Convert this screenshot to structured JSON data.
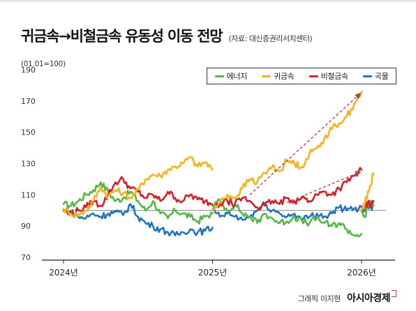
{
  "header": {
    "title": "귀금속→비철금속 유동성 이동 전망",
    "source": "(자료: 대신증권리서치센터)",
    "unit": "(01.01=100)"
  },
  "credit": {
    "author": "그래픽 이지현",
    "brand": "아시아경제"
  },
  "colors": {
    "energy": "#54b847",
    "precious_metals": "#f5b41c",
    "base_metals": "#d5202a",
    "grains": "#1f75bd",
    "arrow": "#b5404a",
    "baseline": "#9a9a9a"
  },
  "chart_data": {
    "type": "line",
    "title": "귀금속→비철금속 유동성 이동 전망",
    "ylabel": "(01.01=100)",
    "xlabel": "",
    "ylim": [
      70,
      190
    ],
    "yticks": [
      "190",
      "170",
      "150",
      "130",
      "110",
      "90",
      "70"
    ],
    "xticks": [
      {
        "label": "2024년",
        "x": 2024.0
      },
      {
        "label": "2025년",
        "x": 2025.0
      },
      {
        "label": "2026년",
        "x": 2026.0
      }
    ],
    "legend_position": "top-right",
    "grid": false,
    "reference_line": 100,
    "series": [
      {
        "name": "에너지",
        "color": "#54b847",
        "segments": [
          [
            [
              2024.0,
              104
            ],
            [
              2024.05,
              103
            ],
            [
              2024.1,
              106
            ],
            [
              2024.15,
              110
            ],
            [
              2024.2,
              113
            ],
            [
              2024.25,
              118
            ],
            [
              2024.3,
              112
            ],
            [
              2024.35,
              106
            ],
            [
              2024.4,
              108
            ],
            [
              2024.45,
              112
            ],
            [
              2024.5,
              106
            ],
            [
              2024.55,
              100
            ],
            [
              2024.6,
              106
            ],
            [
              2024.65,
              98
            ],
            [
              2024.7,
              95
            ],
            [
              2024.75,
              100
            ],
            [
              2024.8,
              98
            ],
            [
              2024.85,
              96
            ],
            [
              2024.9,
              93
            ],
            [
              2024.95,
              96
            ],
            [
              2025.0,
              98
            ]
          ],
          [
            [
              2025.0,
              103
            ],
            [
              2025.05,
              106
            ],
            [
              2025.1,
              100
            ],
            [
              2025.15,
              104
            ],
            [
              2025.2,
              98
            ],
            [
              2025.25,
              96
            ],
            [
              2025.3,
              92
            ],
            [
              2025.35,
              98
            ],
            [
              2025.4,
              95
            ],
            [
              2025.45,
              92
            ],
            [
              2025.5,
              93
            ],
            [
              2025.55,
              96
            ],
            [
              2025.6,
              93
            ],
            [
              2025.65,
              92
            ],
            [
              2025.7,
              95
            ],
            [
              2025.75,
              92
            ],
            [
              2025.8,
              90
            ],
            [
              2025.85,
              92
            ],
            [
              2025.9,
              88
            ],
            [
              2025.95,
              84
            ],
            [
              2026.0,
              85
            ]
          ],
          [
            [
              2026.0,
              100
            ],
            [
              2026.02,
              96
            ],
            [
              2026.04,
              102
            ],
            [
              2026.06,
              106
            ],
            [
              2026.08,
              103
            ]
          ]
        ]
      },
      {
        "name": "귀금속",
        "color": "#f5b41c",
        "segments": [
          [
            [
              2024.0,
              101
            ],
            [
              2024.05,
              98
            ],
            [
              2024.1,
              97
            ],
            [
              2024.15,
              100
            ],
            [
              2024.2,
              106
            ],
            [
              2024.25,
              115
            ],
            [
              2024.3,
              109
            ],
            [
              2024.35,
              113
            ],
            [
              2024.4,
              111
            ],
            [
              2024.45,
              108
            ],
            [
              2024.5,
              113
            ],
            [
              2024.55,
              120
            ],
            [
              2024.6,
              123
            ],
            [
              2024.65,
              122
            ],
            [
              2024.7,
              126
            ],
            [
              2024.75,
              128
            ],
            [
              2024.8,
              130
            ],
            [
              2024.85,
              134
            ],
            [
              2024.9,
              128
            ],
            [
              2024.95,
              131
            ],
            [
              2025.0,
              126
            ]
          ],
          [
            [
              2025.0,
              100
            ],
            [
              2025.05,
              105
            ],
            [
              2025.1,
              110
            ],
            [
              2025.15,
              108
            ],
            [
              2025.2,
              114
            ],
            [
              2025.25,
              120
            ],
            [
              2025.3,
              118
            ],
            [
              2025.35,
              124
            ],
            [
              2025.4,
              128
            ],
            [
              2025.45,
              125
            ],
            [
              2025.5,
              132
            ],
            [
              2025.55,
              130
            ],
            [
              2025.6,
              128
            ],
            [
              2025.65,
              136
            ],
            [
              2025.7,
              140
            ],
            [
              2025.75,
              146
            ],
            [
              2025.8,
              152
            ],
            [
              2025.85,
              156
            ],
            [
              2025.9,
              160
            ],
            [
              2025.95,
              168
            ],
            [
              2026.0,
              176
            ]
          ],
          [
            [
              2026.0,
              100
            ],
            [
              2026.02,
              104
            ],
            [
              2026.04,
              110
            ],
            [
              2026.06,
              116
            ],
            [
              2026.08,
              123
            ]
          ]
        ]
      },
      {
        "name": "비철금속",
        "color": "#d5202a",
        "segments": [
          [
            [
              2024.0,
              100
            ],
            [
              2024.05,
              98
            ],
            [
              2024.1,
              100
            ],
            [
              2024.15,
              102
            ],
            [
              2024.2,
              106
            ],
            [
              2024.25,
              103
            ],
            [
              2024.3,
              110
            ],
            [
              2024.35,
              118
            ],
            [
              2024.4,
              120
            ],
            [
              2024.45,
              114
            ],
            [
              2024.5,
              112
            ],
            [
              2024.55,
              108
            ],
            [
              2024.6,
              110
            ],
            [
              2024.65,
              106
            ],
            [
              2024.7,
              112
            ],
            [
              2024.75,
              108
            ],
            [
              2024.8,
              106
            ],
            [
              2024.85,
              110
            ],
            [
              2024.9,
              107
            ],
            [
              2024.95,
              106
            ],
            [
              2025.0,
              104
            ]
          ],
          [
            [
              2025.0,
              100
            ],
            [
              2025.05,
              104
            ],
            [
              2025.1,
              106
            ],
            [
              2025.15,
              104
            ],
            [
              2025.2,
              108
            ],
            [
              2025.25,
              106
            ],
            [
              2025.3,
              102
            ],
            [
              2025.35,
              103
            ],
            [
              2025.4,
              106
            ],
            [
              2025.45,
              104
            ],
            [
              2025.5,
              108
            ],
            [
              2025.55,
              106
            ],
            [
              2025.6,
              108
            ],
            [
              2025.65,
              106
            ],
            [
              2025.7,
              110
            ],
            [
              2025.75,
              112
            ],
            [
              2025.8,
              110
            ],
            [
              2025.85,
              114
            ],
            [
              2025.9,
              118
            ],
            [
              2025.95,
              122
            ],
            [
              2026.0,
              126
            ]
          ],
          [
            [
              2026.0,
              100
            ],
            [
              2026.02,
              102
            ],
            [
              2026.04,
              105
            ],
            [
              2026.06,
              104
            ],
            [
              2026.08,
              106
            ]
          ]
        ]
      },
      {
        "name": "곡물",
        "color": "#1f75bd",
        "segments": [
          [
            [
              2024.0,
              100
            ],
            [
              2024.05,
              99
            ],
            [
              2024.1,
              96
            ],
            [
              2024.15,
              95
            ],
            [
              2024.2,
              98
            ],
            [
              2024.25,
              96
            ],
            [
              2024.3,
              98
            ],
            [
              2024.35,
              99
            ],
            [
              2024.4,
              97
            ],
            [
              2024.45,
              104
            ],
            [
              2024.5,
              96
            ],
            [
              2024.55,
              92
            ],
            [
              2024.6,
              90
            ],
            [
              2024.65,
              88
            ],
            [
              2024.7,
              86
            ],
            [
              2024.75,
              84
            ],
            [
              2024.8,
              86
            ],
            [
              2024.85,
              88
            ],
            [
              2024.9,
              86
            ],
            [
              2024.95,
              87
            ],
            [
              2025.0,
              89
            ]
          ],
          [
            [
              2025.0,
              100
            ],
            [
              2025.05,
              96
            ],
            [
              2025.1,
              98
            ],
            [
              2025.15,
              96
            ],
            [
              2025.2,
              94
            ],
            [
              2025.25,
              96
            ],
            [
              2025.3,
              100
            ],
            [
              2025.35,
              104
            ],
            [
              2025.4,
              100
            ],
            [
              2025.45,
              98
            ],
            [
              2025.5,
              96
            ],
            [
              2025.55,
              98
            ],
            [
              2025.6,
              94
            ],
            [
              2025.65,
              96
            ],
            [
              2025.7,
              98
            ],
            [
              2025.75,
              96
            ],
            [
              2025.8,
              98
            ],
            [
              2025.85,
              102
            ],
            [
              2025.9,
              100
            ],
            [
              2025.95,
              101
            ],
            [
              2026.0,
              102
            ]
          ],
          [
            [
              2026.0,
              100
            ],
            [
              2026.02,
              101
            ],
            [
              2026.04,
              102
            ],
            [
              2026.06,
              102
            ],
            [
              2026.08,
              103
            ]
          ]
        ]
      }
    ],
    "arrows": [
      {
        "from": [
          2025.25,
          110
        ],
        "to": [
          2026.0,
          176
        ]
      },
      {
        "from": [
          2025.5,
          105
        ],
        "to": [
          2026.0,
          126
        ]
      }
    ]
  }
}
